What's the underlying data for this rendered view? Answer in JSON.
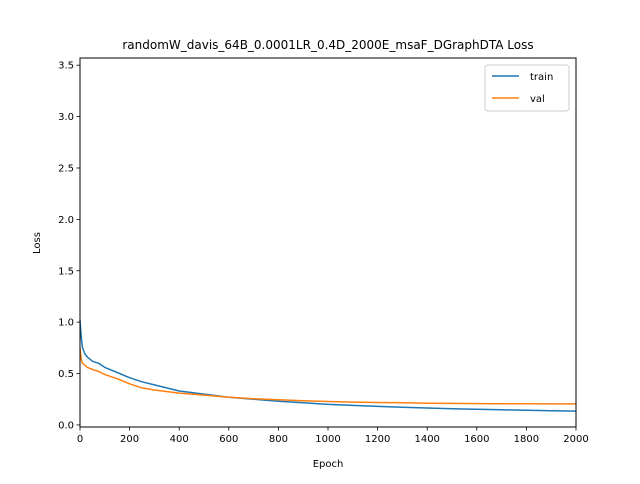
{
  "chart_data": {
    "type": "line",
    "title": "randomW_davis_64B_0.0001LR_0.4D_2000E_msaF_DGraphDTA Loss",
    "xlabel": "Epoch",
    "ylabel": "Loss",
    "xlim": [
      0,
      2000
    ],
    "ylim": [
      -0.02,
      3.57
    ],
    "x_ticks": [
      0,
      200,
      400,
      600,
      800,
      1000,
      1200,
      1400,
      1600,
      1800,
      2000
    ],
    "y_ticks": [
      0.0,
      0.5,
      1.0,
      1.5,
      2.0,
      2.5,
      3.0,
      3.5
    ],
    "x_tick_labels": [
      "0",
      "200",
      "400",
      "600",
      "800",
      "1000",
      "1200",
      "1400",
      "1600",
      "1800",
      "2000"
    ],
    "y_tick_labels": [
      "0.0",
      "0.5",
      "1.0",
      "1.5",
      "2.0",
      "2.5",
      "3.0",
      "3.5"
    ],
    "grid": false,
    "legend_position": "top-right",
    "series": [
      {
        "name": "train",
        "color": "#1f77b4",
        "x": [
          0,
          5,
          10,
          20,
          30,
          50,
          75,
          100,
          150,
          200,
          250,
          300,
          400,
          500,
          600,
          700,
          800,
          900,
          1000,
          1100,
          1200,
          1300,
          1400,
          1500,
          1600,
          1700,
          1800,
          1900,
          2000
        ],
        "y": [
          1.02,
          0.86,
          0.75,
          0.69,
          0.66,
          0.62,
          0.6,
          0.56,
          0.51,
          0.46,
          0.42,
          0.39,
          0.33,
          0.3,
          0.27,
          0.25,
          0.23,
          0.215,
          0.2,
          0.19,
          0.18,
          0.172,
          0.165,
          0.158,
          0.152,
          0.147,
          0.142,
          0.138,
          0.135
        ]
      },
      {
        "name": "val",
        "color": "#ff7f0e",
        "x": [
          0,
          5,
          10,
          20,
          30,
          50,
          75,
          100,
          150,
          200,
          250,
          300,
          400,
          500,
          600,
          700,
          800,
          900,
          1000,
          1100,
          1200,
          1300,
          1400,
          1500,
          1600,
          1700,
          1800,
          1900,
          2000
        ],
        "y": [
          0.75,
          0.64,
          0.6,
          0.58,
          0.56,
          0.54,
          0.52,
          0.49,
          0.45,
          0.4,
          0.36,
          0.34,
          0.31,
          0.29,
          0.27,
          0.255,
          0.245,
          0.235,
          0.228,
          0.222,
          0.218,
          0.215,
          0.212,
          0.21,
          0.208,
          0.207,
          0.206,
          0.205,
          0.205
        ]
      }
    ]
  }
}
